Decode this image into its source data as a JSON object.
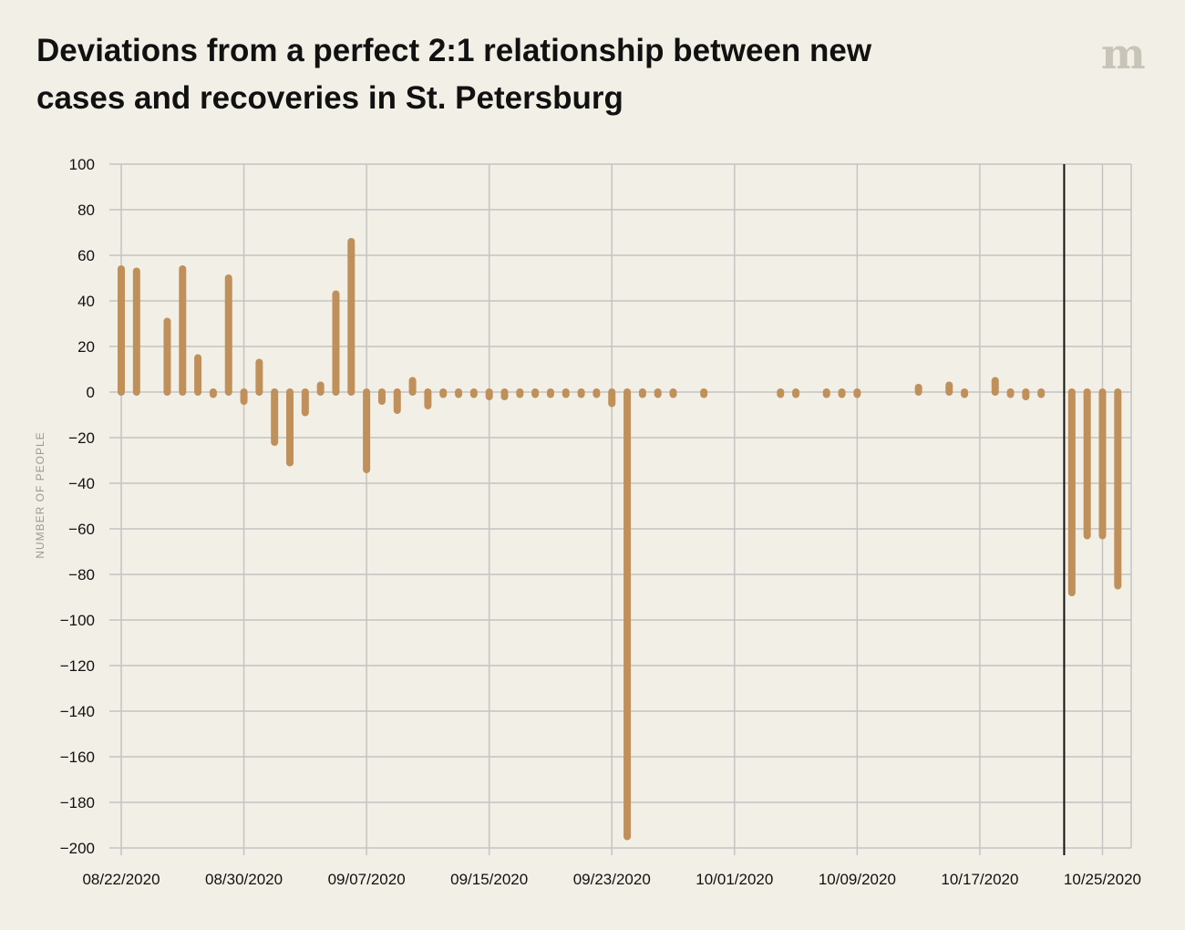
{
  "title": "Deviations from a perfect 2:1 relationship between new cases and recoveries in St. Petersburg",
  "logo": "m",
  "colors": {
    "bar": "#c0905a",
    "grid": "#c4c4c4",
    "background": "#f2efe6",
    "marker": "#111111"
  },
  "chart_data": {
    "type": "bar",
    "title": "Deviations from a perfect 2:1 relationship between new cases and recoveries in St. Petersburg",
    "xlabel": "",
    "ylabel": "NUMBER OF PEOPLE",
    "ylim": [
      -200,
      100
    ],
    "yticks": [
      100,
      80,
      60,
      40,
      20,
      0,
      -20,
      -40,
      -60,
      -80,
      -100,
      -120,
      -140,
      -160,
      -180,
      -200
    ],
    "ytick_labels": [
      "100",
      "80",
      "60",
      "40",
      "20",
      "0",
      "−20",
      "−40",
      "−60",
      "−80",
      "−100",
      "−120",
      "−140",
      "−160",
      "−180",
      "−200"
    ],
    "xtick_labels": [
      "08/22/2020",
      "08/30/2020",
      "09/07/2020",
      "09/15/2020",
      "09/23/2020",
      "10/01/2020",
      "10/09/2020",
      "10/17/2020",
      "10/25/2020"
    ],
    "grid": true,
    "reference_line_date": "10/23/2020",
    "categories": [
      "08/22/2020",
      "08/23/2020",
      "08/24/2020",
      "08/25/2020",
      "08/26/2020",
      "08/27/2020",
      "08/28/2020",
      "08/29/2020",
      "08/30/2020",
      "08/31/2020",
      "09/01/2020",
      "09/02/2020",
      "09/03/2020",
      "09/04/2020",
      "09/05/2020",
      "09/06/2020",
      "09/07/2020",
      "09/08/2020",
      "09/09/2020",
      "09/10/2020",
      "09/11/2020",
      "09/12/2020",
      "09/13/2020",
      "09/14/2020",
      "09/15/2020",
      "09/16/2020",
      "09/17/2020",
      "09/18/2020",
      "09/19/2020",
      "09/20/2020",
      "09/21/2020",
      "09/22/2020",
      "09/23/2020",
      "09/24/2020",
      "09/25/2020",
      "09/26/2020",
      "09/27/2020",
      "09/28/2020",
      "09/29/2020",
      "09/30/2020",
      "10/01/2020",
      "10/02/2020",
      "10/03/2020",
      "10/04/2020",
      "10/05/2020",
      "10/06/2020",
      "10/07/2020",
      "10/08/2020",
      "10/09/2020",
      "10/10/2020",
      "10/11/2020",
      "10/12/2020",
      "10/13/2020",
      "10/14/2020",
      "10/15/2020",
      "10/16/2020",
      "10/17/2020",
      "10/18/2020",
      "10/19/2020",
      "10/20/2020",
      "10/21/2020",
      "10/22/2020",
      "10/23/2020",
      "10/24/2020",
      "10/25/2020",
      "10/26/2020"
    ],
    "values": [
      54,
      53,
      0,
      31,
      54,
      15,
      -1,
      50,
      -4,
      13,
      -22,
      -31,
      -9,
      3,
      43,
      66,
      -34,
      -4,
      -8,
      5,
      -6,
      -1,
      -1,
      -1,
      -2,
      -2,
      -1,
      -1,
      -1,
      -1,
      -1,
      -1,
      -5,
      -195,
      -1,
      -1,
      -1,
      0,
      -1,
      0,
      0,
      0,
      0,
      -1,
      -1,
      0,
      -1,
      -1,
      -1,
      0,
      0,
      0,
      2,
      0,
      3,
      -1,
      0,
      5,
      -1,
      -2,
      -1,
      0,
      -88,
      -63,
      -63,
      -85
    ]
  }
}
